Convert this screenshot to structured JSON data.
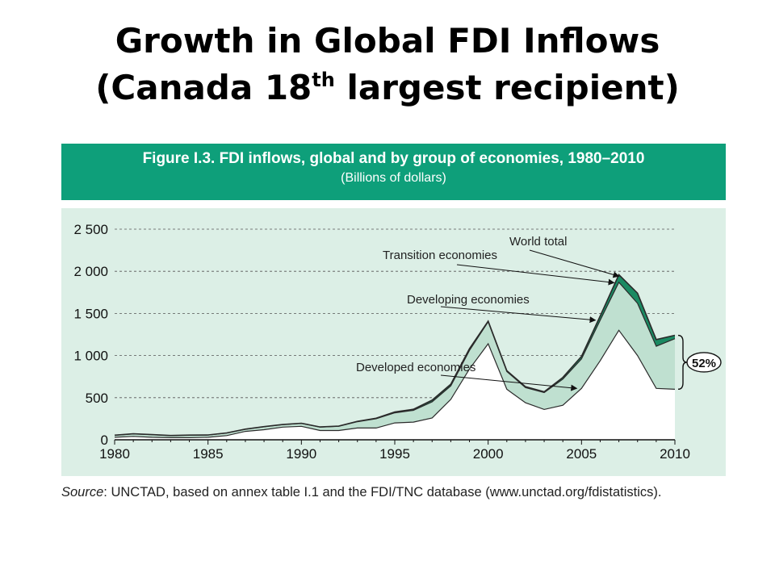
{
  "slide": {
    "title_line1": "Growth in Global FDI Inflows",
    "title_line2_a": "(Canada 18",
    "title_line2_sup": "th",
    "title_line2_b": " largest recipient)"
  },
  "figure": {
    "caption": "Figure I.3.  FDI inflows, global and by group of economies, 1980–2010",
    "units": "(Billions of dollars)",
    "source_label": "Source",
    "source_text": ": UNCTAD, based on annex table I.1 and the FDI/TNC database (www.unctad.org/fdistatistics)."
  },
  "chart_data": {
    "type": "area",
    "x": [
      1980,
      1981,
      1982,
      1983,
      1984,
      1985,
      1986,
      1987,
      1988,
      1989,
      1990,
      1991,
      1992,
      1993,
      1994,
      1995,
      1996,
      1997,
      1998,
      1999,
      2000,
      2001,
      2002,
      2003,
      2004,
      2005,
      2006,
      2007,
      2008,
      2009,
      2010
    ],
    "series": [
      {
        "name": "Developed economies",
        "values": [
          30,
          40,
          30,
          25,
          25,
          30,
          50,
          100,
          120,
          150,
          160,
          110,
          110,
          140,
          140,
          200,
          210,
          260,
          480,
          840,
          1140,
          600,
          440,
          360,
          410,
          610,
          940,
          1300,
          1000,
          610,
          600
        ]
      },
      {
        "name": "Developing economies",
        "values": [
          54,
          70,
          60,
          50,
          55,
          56,
          80,
          125,
          155,
          180,
          195,
          150,
          160,
          215,
          250,
          320,
          350,
          450,
          640,
          1060,
          1400,
          810,
          620,
          560,
          720,
          960,
          1420,
          1870,
          1620,
          1110,
          1200
        ]
      },
      {
        "name": "Transition economies",
        "values": [
          55,
          71,
          61,
          51,
          56,
          57,
          81,
          126,
          156,
          181,
          196,
          152,
          163,
          219,
          256,
          330,
          362,
          470,
          660,
          1080,
          1408,
          820,
          630,
          570,
          740,
          990,
          1470,
          1960,
          1740,
          1190,
          1240
        ]
      },
      {
        "name": "World total",
        "values": [
          55,
          71,
          61,
          51,
          56,
          57,
          81,
          126,
          156,
          181,
          196,
          152,
          163,
          219,
          256,
          330,
          362,
          470,
          660,
          1080,
          1408,
          820,
          630,
          570,
          740,
          990,
          1470,
          1960,
          1740,
          1190,
          1240
        ]
      }
    ],
    "y_ticks": [
      "0",
      "500",
      "1 000",
      "1 500",
      "2 000",
      "2 500"
    ],
    "x_ticks": [
      "1980",
      "1985",
      "1990",
      "1995",
      "2000",
      "2005",
      "2010"
    ],
    "ylim": [
      0,
      2500
    ],
    "xlim": [
      1980,
      2010
    ],
    "grid": true,
    "annotations": [
      {
        "text": "World total",
        "target_series": "World total",
        "target_x": 2007
      },
      {
        "text": "Transition economies",
        "target_series": "Transition economies",
        "target_x": 2007
      },
      {
        "text": "Developing economies",
        "target_series": "Developing economies",
        "target_x": 2006
      },
      {
        "text": "Developed economies",
        "target_series": "Developed economies",
        "target_x": 2005
      }
    ],
    "share_label": "52%",
    "colors": {
      "panel": "#dcefe6",
      "developed_fill": "#ffffff",
      "developing_fill": "#bfe0d0",
      "transition_fill": "#1a8a62",
      "line": "#2a2a2a",
      "banner": "#0e9f7a"
    }
  }
}
